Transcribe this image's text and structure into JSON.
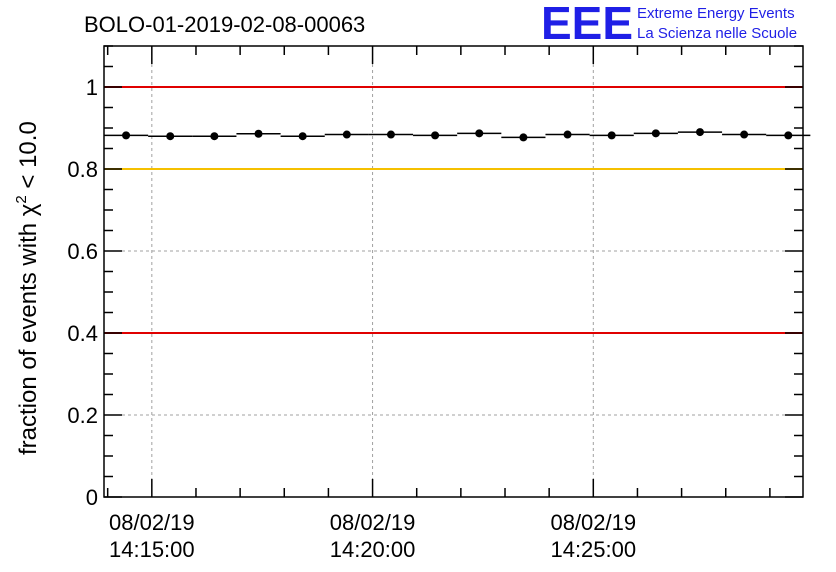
{
  "chart_data": {
    "type": "scatter",
    "title": "BOLO-01-2019-02-08-00063",
    "ylabel_main": "fraction of events with ",
    "ylabel_chi": "χ",
    "ylabel_exp": "2",
    "ylabel_tail": " < 10.0",
    "xlabel": "",
    "ylim": [
      0,
      1.1
    ],
    "x_time_range": [
      "14:13:55",
      "14:29:45"
    ],
    "y_ticks": [
      "0",
      "0.2",
      "0.4",
      "0.6",
      "0.8",
      "1"
    ],
    "y_tick_values": [
      0,
      0.2,
      0.4,
      0.6,
      0.8,
      1.0
    ],
    "x_ticks": [
      {
        "date": "08/02/19",
        "time": "14:15:00"
      },
      {
        "date": "08/02/19",
        "time": "14:20:00"
      },
      {
        "date": "08/02/19",
        "time": "14:25:00"
      }
    ],
    "grid": true,
    "reference_lines": [
      {
        "y": 1.0,
        "color": "#e00000"
      },
      {
        "y": 0.8,
        "color": "#f5c000"
      },
      {
        "y": 0.4,
        "color": "#e00000"
      }
    ],
    "series": [
      {
        "x": [
          "14:14:25",
          "14:15:25",
          "14:16:25",
          "14:17:25",
          "14:18:25",
          "14:19:25",
          "14:20:25",
          "14:21:25",
          "14:22:25",
          "14:23:25",
          "14:24:25",
          "14:25:25",
          "14:26:25",
          "14:27:25",
          "14:28:25",
          "14:29:25"
        ],
        "y": [
          0.882,
          0.88,
          0.88,
          0.886,
          0.88,
          0.884,
          0.884,
          0.882,
          0.887,
          0.877,
          0.884,
          0.882,
          0.887,
          0.89,
          0.884,
          0.882
        ],
        "x_error_seconds": 30,
        "color": "#000000"
      }
    ]
  },
  "logo": {
    "mark": "EEE",
    "line1": "Extreme Energy Events",
    "line2": "La Scienza nelle Scuole",
    "color": "#1f1fe6"
  }
}
